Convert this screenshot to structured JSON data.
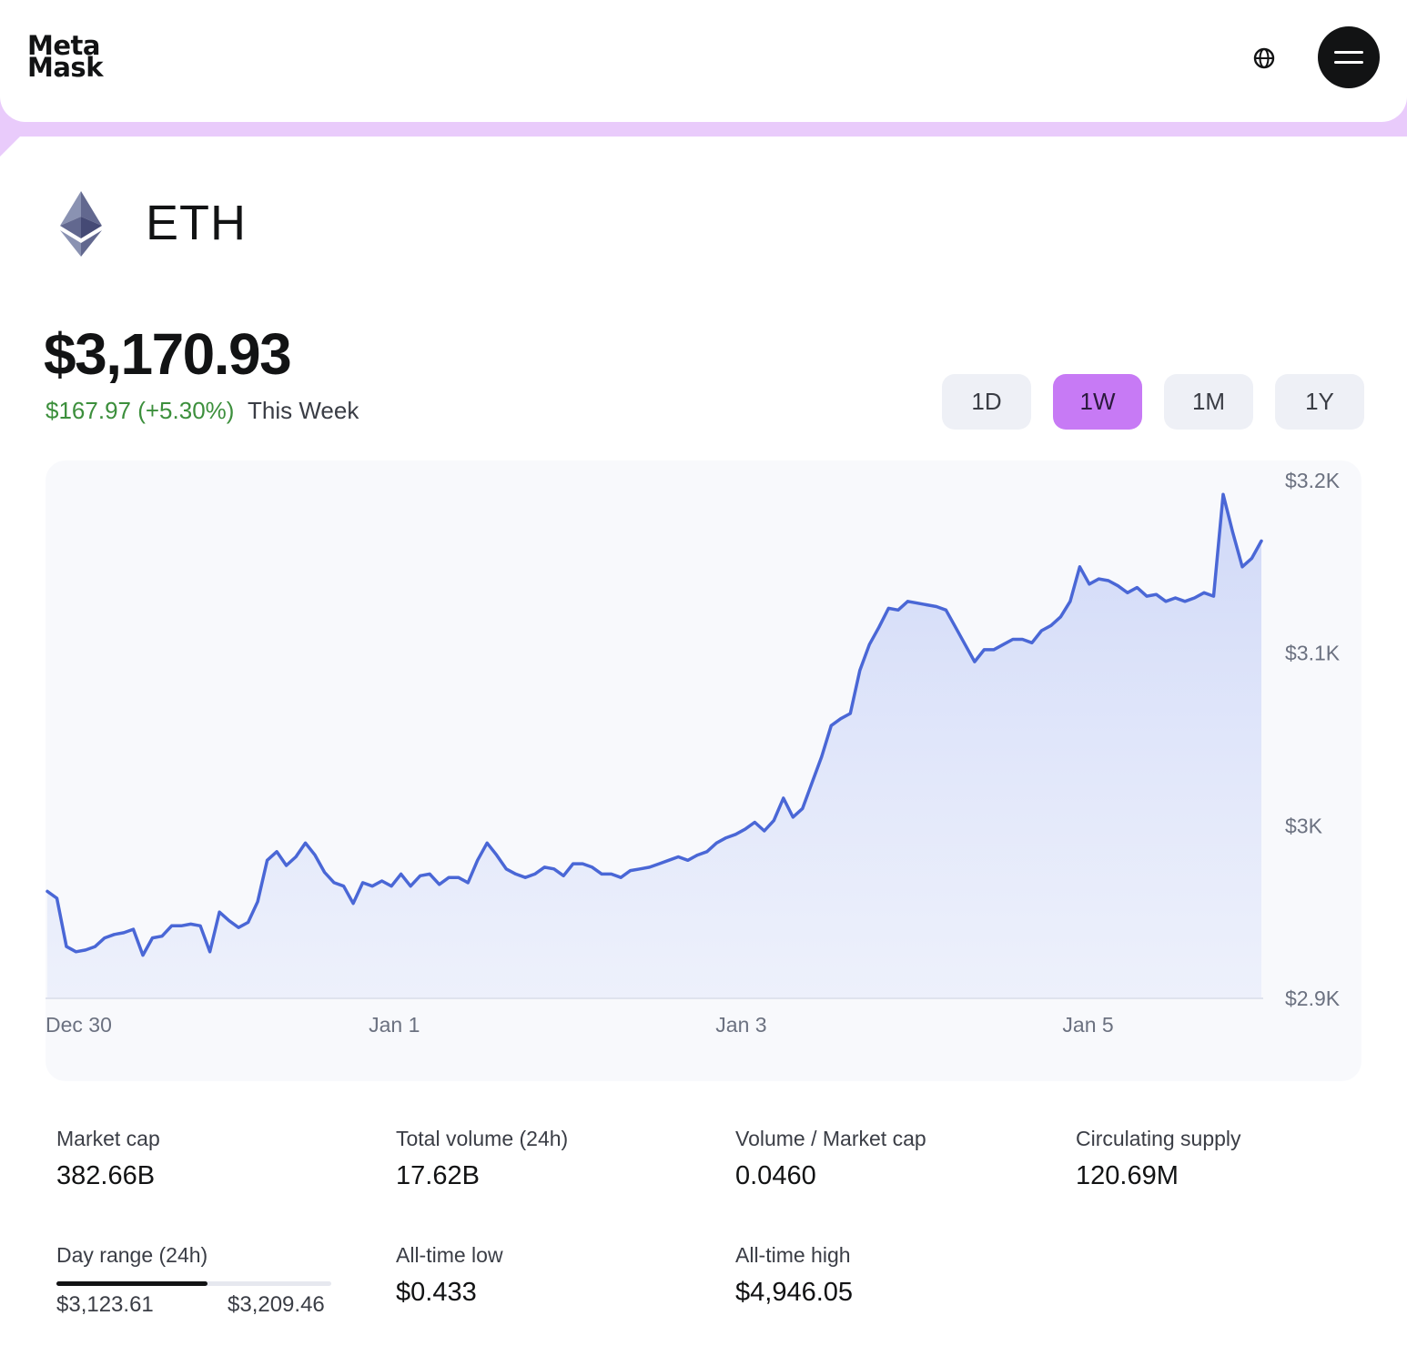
{
  "header": {
    "logo_line1": "Meta",
    "logo_line2": "Mask",
    "globe_icon": "globe-icon",
    "menu_icon": "hamburger-menu-icon"
  },
  "token": {
    "symbol": "ETH",
    "icon": "ethereum-diamond-icon",
    "price": "$3,170.93",
    "change": "$167.97 (+5.30%)",
    "period": "This Week"
  },
  "ranges": [
    {
      "label": "1D",
      "active": false
    },
    {
      "label": "1W",
      "active": true
    },
    {
      "label": "1M",
      "active": false
    },
    {
      "label": "1Y",
      "active": false
    }
  ],
  "colors": {
    "accent_purple": "#c77af5",
    "header_band": "#e9cbfb",
    "positive_green": "#3c8f3c",
    "line_blue": "#4a67d6"
  },
  "chart_data": {
    "type": "area",
    "x_labels": [
      "Dec 30",
      "Jan 1",
      "Jan 3",
      "Jan 5"
    ],
    "y_ticks": [
      "$3.2K",
      "$3.1K",
      "$3K",
      "$2.9K"
    ],
    "ylim": [
      2900,
      3200
    ],
    "x_range": [
      "Dec 30",
      "Jan 6"
    ],
    "series": [
      {
        "values": [
          2962,
          2958,
          2930,
          2927,
          2928,
          2930,
          2935,
          2937,
          2938,
          2940,
          2925,
          2935,
          2936,
          2942,
          2942,
          2943,
          2942,
          2927,
          2950,
          2945,
          2941,
          2944,
          2956,
          2980,
          2985,
          2977,
          2982,
          2990,
          2983,
          2973,
          2967,
          2965,
          2955,
          2967,
          2965,
          2968,
          2965,
          2972,
          2965,
          2971,
          2972,
          2966,
          2970,
          2970,
          2967,
          2980,
          2990,
          2983,
          2975,
          2972,
          2970,
          2972,
          2976,
          2975,
          2971,
          2978,
          2978,
          2976,
          2972,
          2972,
          2970,
          2974,
          2975,
          2976,
          2978,
          2980,
          2982,
          2980,
          2983,
          2985,
          2990,
          2993,
          2995,
          2998,
          3002,
          2997,
          3003,
          3016,
          3005,
          3010,
          3025,
          3040,
          3058,
          3062,
          3065,
          3090,
          3105,
          3115,
          3126,
          3125,
          3130,
          3129,
          3128,
          3127,
          3125,
          3115,
          3105,
          3095,
          3102,
          3102,
          3105,
          3108,
          3108,
          3106,
          3113,
          3116,
          3121,
          3130,
          3150,
          3140,
          3143,
          3142,
          3139,
          3135,
          3138,
          3133,
          3134,
          3130,
          3132,
          3130,
          3132,
          3135,
          3133,
          3192,
          3170,
          3150,
          3155,
          3165
        ]
      }
    ]
  },
  "stats": {
    "market_cap": {
      "label": "Market cap",
      "value": "382.66B"
    },
    "total_volume": {
      "label": "Total volume (24h)",
      "value": "17.62B"
    },
    "volume_market_cap": {
      "label": "Volume / Market cap",
      "value": "0.0460"
    },
    "circulating_supply": {
      "label": "Circulating supply",
      "value": "120.69M"
    },
    "day_range": {
      "label": "Day range (24h)",
      "low": "$3,123.61",
      "high": "$3,209.46",
      "fill_fraction": 0.55
    },
    "all_time_low": {
      "label": "All-time low",
      "value": "$0.433"
    },
    "all_time_high": {
      "label": "All-time high",
      "value": "$4,946.05"
    }
  }
}
